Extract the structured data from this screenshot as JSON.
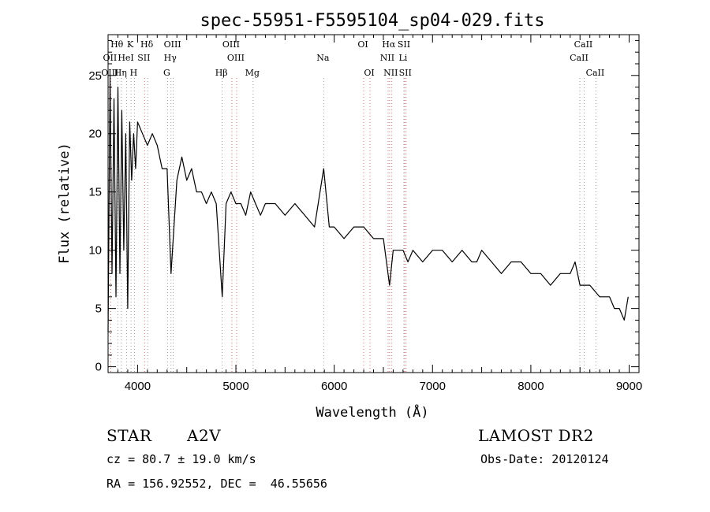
{
  "chart_data": {
    "type": "line",
    "title": "spec-55951-F5595104_sp04-029.fits",
    "xlabel": "Wavelength (Å)",
    "ylabel": "Flux (relative)",
    "xlim": [
      3700,
      9100
    ],
    "ylim": [
      -0.5,
      28.5
    ],
    "xticks": [
      4000,
      5000,
      6000,
      7000,
      8000,
      9000
    ],
    "yticks": [
      0,
      5,
      10,
      15,
      20,
      25
    ],
    "grid": false,
    "series": [
      {
        "x": [
          3700,
          3720,
          3740,
          3760,
          3780,
          3800,
          3820,
          3840,
          3860,
          3880,
          3900,
          3920,
          3940,
          3960,
          3980,
          4000,
          4050,
          4100,
          4150,
          4200,
          4250,
          4300,
          4340,
          4400,
          4450,
          4500,
          4550,
          4600,
          4650,
          4700,
          4750,
          4800,
          4861,
          4900,
          4950,
          5000,
          5050,
          5100,
          5150,
          5200,
          5250,
          5300,
          5400,
          5500,
          5600,
          5700,
          5800,
          5893,
          5950,
          6000,
          6100,
          6200,
          6300,
          6400,
          6500,
          6563,
          6600,
          6650,
          6700,
          6750,
          6800,
          6900,
          7000,
          7100,
          7200,
          7300,
          7400,
          7450,
          7500,
          7600,
          7700,
          7800,
          7900,
          8000,
          8100,
          8200,
          8300,
          8400,
          8450,
          8500,
          8600,
          8700,
          8800,
          8850,
          8900,
          8950,
          8990
        ],
        "y": [
          3,
          25,
          8,
          23,
          6,
          24,
          8,
          22,
          10,
          20,
          5,
          21,
          16,
          20,
          17,
          21,
          20,
          19,
          20,
          19,
          17,
          17,
          8,
          16,
          18,
          16,
          17,
          15,
          15,
          14,
          15,
          14,
          6,
          14,
          15,
          14,
          14,
          13,
          15,
          14,
          13,
          14,
          14,
          13,
          14,
          13,
          12,
          17,
          12,
          12,
          11,
          12,
          12,
          11,
          11,
          7,
          10,
          10,
          10,
          9,
          10,
          9,
          10,
          10,
          9,
          10,
          9,
          9,
          10,
          9,
          8,
          9,
          9,
          8,
          8,
          7,
          8,
          8,
          9,
          7,
          7,
          6,
          6,
          5,
          5,
          4,
          6
        ]
      }
    ],
    "line_markers": [
      {
        "name": "Hθ",
        "x": 3798,
        "color": "#999999",
        "row": 0
      },
      {
        "name": "K",
        "x": 3934,
        "color": "#999999",
        "row": 0
      },
      {
        "name": "Hδ",
        "x": 4102,
        "color": "#999999",
        "row": 0
      },
      {
        "name": "OIII",
        "x": 4363,
        "color": "#999999",
        "row": 0
      },
      {
        "name": "OIII",
        "x": 4959,
        "color": "#cc7777",
        "row": 0
      },
      {
        "name": "OI",
        "x": 6300,
        "color": "#cc7777",
        "row": 0
      },
      {
        "name": "Hα",
        "x": 6563,
        "color": "#cc7777",
        "row": 0
      },
      {
        "name": "SII",
        "x": 6717,
        "color": "#cc7777",
        "row": 0
      },
      {
        "name": "CaII",
        "x": 8542,
        "color": "#999999",
        "row": 0
      },
      {
        "name": "OII",
        "x": 3727,
        "color": "#cc7777",
        "row": 1
      },
      {
        "name": "HeI",
        "x": 3889,
        "color": "#999999",
        "row": 1
      },
      {
        "name": "SII",
        "x": 4072,
        "color": "#cc7777",
        "row": 1
      },
      {
        "name": "Hγ",
        "x": 4340,
        "color": "#999999",
        "row": 1
      },
      {
        "name": "OIII",
        "x": 5007,
        "color": "#cc7777",
        "row": 1
      },
      {
        "name": "Na",
        "x": 5893,
        "color": "#999999",
        "row": 1
      },
      {
        "name": "NII",
        "x": 6548,
        "color": "#cc7777",
        "row": 1
      },
      {
        "name": "Li",
        "x": 6708,
        "color": "#999999",
        "row": 1
      },
      {
        "name": "CaII",
        "x": 8498,
        "color": "#999999",
        "row": 1
      },
      {
        "name": "OIII",
        "x": 3726,
        "color": "#cc7777",
        "row": 2
      },
      {
        "name": "Hη",
        "x": 3835,
        "color": "#999999",
        "row": 2
      },
      {
        "name": "H",
        "x": 3968,
        "color": "#999999",
        "row": 2
      },
      {
        "name": "G",
        "x": 4305,
        "color": "#999999",
        "row": 2
      },
      {
        "name": "Hβ",
        "x": 4861,
        "color": "#999999",
        "row": 2
      },
      {
        "name": "Mg",
        "x": 5175,
        "color": "#999999",
        "row": 2
      },
      {
        "name": "OI",
        "x": 6364,
        "color": "#cc7777",
        "row": 2
      },
      {
        "name": "NII",
        "x": 6583,
        "color": "#cc7777",
        "row": 2
      },
      {
        "name": "SII",
        "x": 6731,
        "color": "#cc7777",
        "row": 2
      },
      {
        "name": "CaII",
        "x": 8662,
        "color": "#999999",
        "row": 2
      }
    ]
  },
  "info": {
    "object_class": "STAR",
    "subclass": "A2V",
    "survey": "LAMOST DR2",
    "redshift": "cz = 80.7 ± 19.0 km/s",
    "obs_date": "Obs-Date: 20120124",
    "coords": "RA = 156.92552, DEC =  46.55656"
  }
}
